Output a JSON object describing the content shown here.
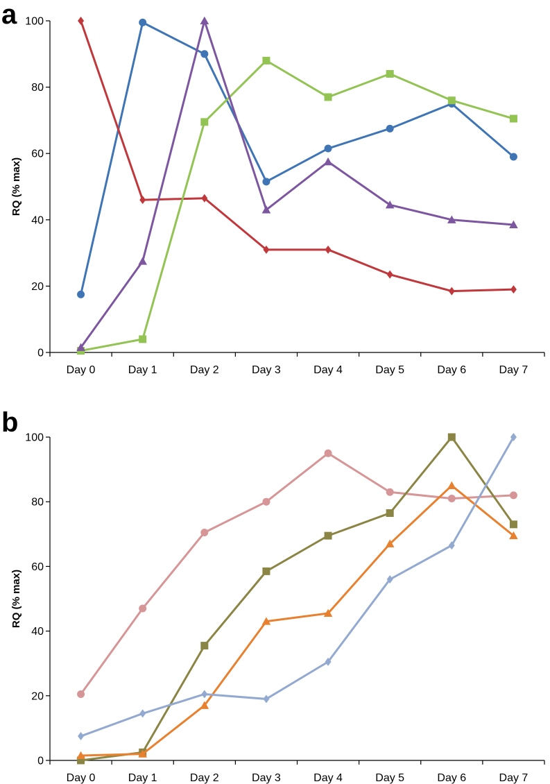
{
  "chart_data": [
    {
      "type": "line",
      "panel": "a",
      "title": "",
      "xlabel": "",
      "ylabel": "RQ (% max)",
      "ylim": [
        0,
        100
      ],
      "yticks": [
        "0",
        "20",
        "40",
        "60",
        "80",
        "100"
      ],
      "categories": [
        "Day 0",
        "Day 1",
        "Day 2",
        "Day 3",
        "Day 4",
        "Day 5",
        "Day 6",
        "Day 7"
      ],
      "series": [
        {
          "name": "blue circles",
          "color": "#3f74b5",
          "marker": "circle",
          "values": [
            17.5,
            99.5,
            90,
            51.5,
            61.5,
            67.5,
            75,
            59
          ]
        },
        {
          "name": "red diamonds",
          "color": "#c0373c",
          "marker": "diamond",
          "values": [
            100,
            46,
            46.5,
            31,
            31,
            23.5,
            18.5,
            19
          ]
        },
        {
          "name": "green squares",
          "color": "#92c353",
          "marker": "square",
          "values": [
            0.5,
            4,
            69.5,
            88,
            77,
            84,
            76,
            70.5
          ]
        },
        {
          "name": "purple triangles",
          "color": "#7d56a0",
          "marker": "triangle",
          "values": [
            1.5,
            27.5,
            100,
            43,
            57.5,
            44.5,
            40,
            38.5
          ]
        }
      ]
    },
    {
      "type": "line",
      "panel": "b",
      "title": "",
      "xlabel": "",
      "ylabel": "RQ (% max)",
      "ylim": [
        0,
        100
      ],
      "yticks": [
        "0",
        "20",
        "40",
        "60",
        "80",
        "100"
      ],
      "categories": [
        "Day 0",
        "Day 1",
        "Day 2",
        "Day 3",
        "Day 4",
        "Day 5",
        "Day 6",
        "Day 7"
      ],
      "series": [
        {
          "name": "pink circles",
          "color": "#d69596",
          "marker": "circle",
          "values": [
            20.5,
            47,
            70.5,
            80,
            95,
            83,
            81,
            82
          ]
        },
        {
          "name": "olive squares",
          "color": "#8b8545",
          "marker": "square",
          "values": [
            0,
            2.5,
            35.5,
            58.5,
            69.5,
            76.5,
            100,
            73
          ]
        },
        {
          "name": "orange triangles",
          "color": "#e8812f",
          "marker": "triangle",
          "values": [
            1.5,
            2,
            17,
            43,
            45.5,
            67,
            85,
            69.5
          ]
        },
        {
          "name": "light blue diamonds",
          "color": "#93a9d0",
          "marker": "diamond",
          "values": [
            7.5,
            14.5,
            20.5,
            19,
            30.5,
            56,
            66.5,
            100
          ]
        }
      ]
    }
  ]
}
